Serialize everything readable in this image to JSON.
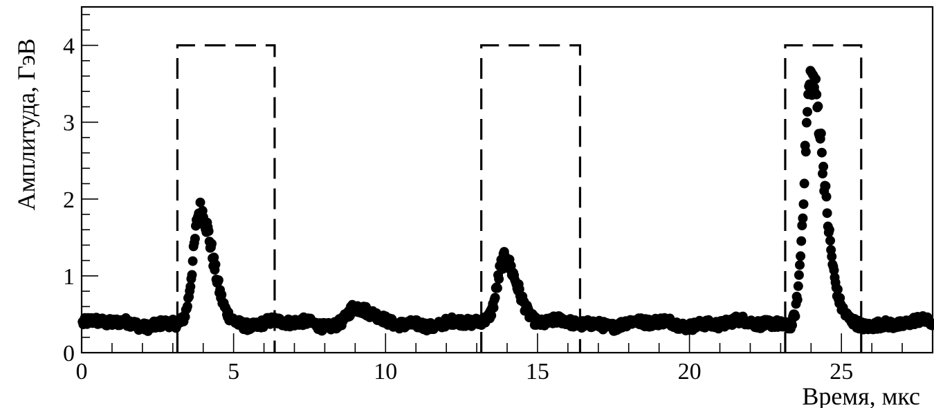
{
  "chart_data": {
    "type": "scatter",
    "title": "",
    "xlabel": "Время, мкс",
    "ylabel": "Амплитуда, ГэВ",
    "xlim": [
      0,
      28
    ],
    "ylim": [
      0,
      4.5
    ],
    "x_ticks": [
      0,
      5,
      10,
      15,
      20,
      25
    ],
    "y_ticks": [
      0,
      1,
      2,
      3,
      4
    ],
    "grid": false,
    "legend": "none",
    "marker_color": "#000000",
    "baseline_level": 0.38,
    "peaks": [
      {
        "x": 3.9,
        "amplitude": 1.8
      },
      {
        "x": 9.0,
        "amplitude": 0.6
      },
      {
        "x": 13.9,
        "amplitude": 1.25
      },
      {
        "x": 24.0,
        "amplitude": 3.55
      }
    ],
    "windows": [
      {
        "x_start": 3.15,
        "x_end": 6.35,
        "level": 4.0
      },
      {
        "x_start": 13.15,
        "x_end": 16.4,
        "level": 4.0
      },
      {
        "x_start": 23.15,
        "x_end": 25.65,
        "level": 4.0
      }
    ]
  }
}
